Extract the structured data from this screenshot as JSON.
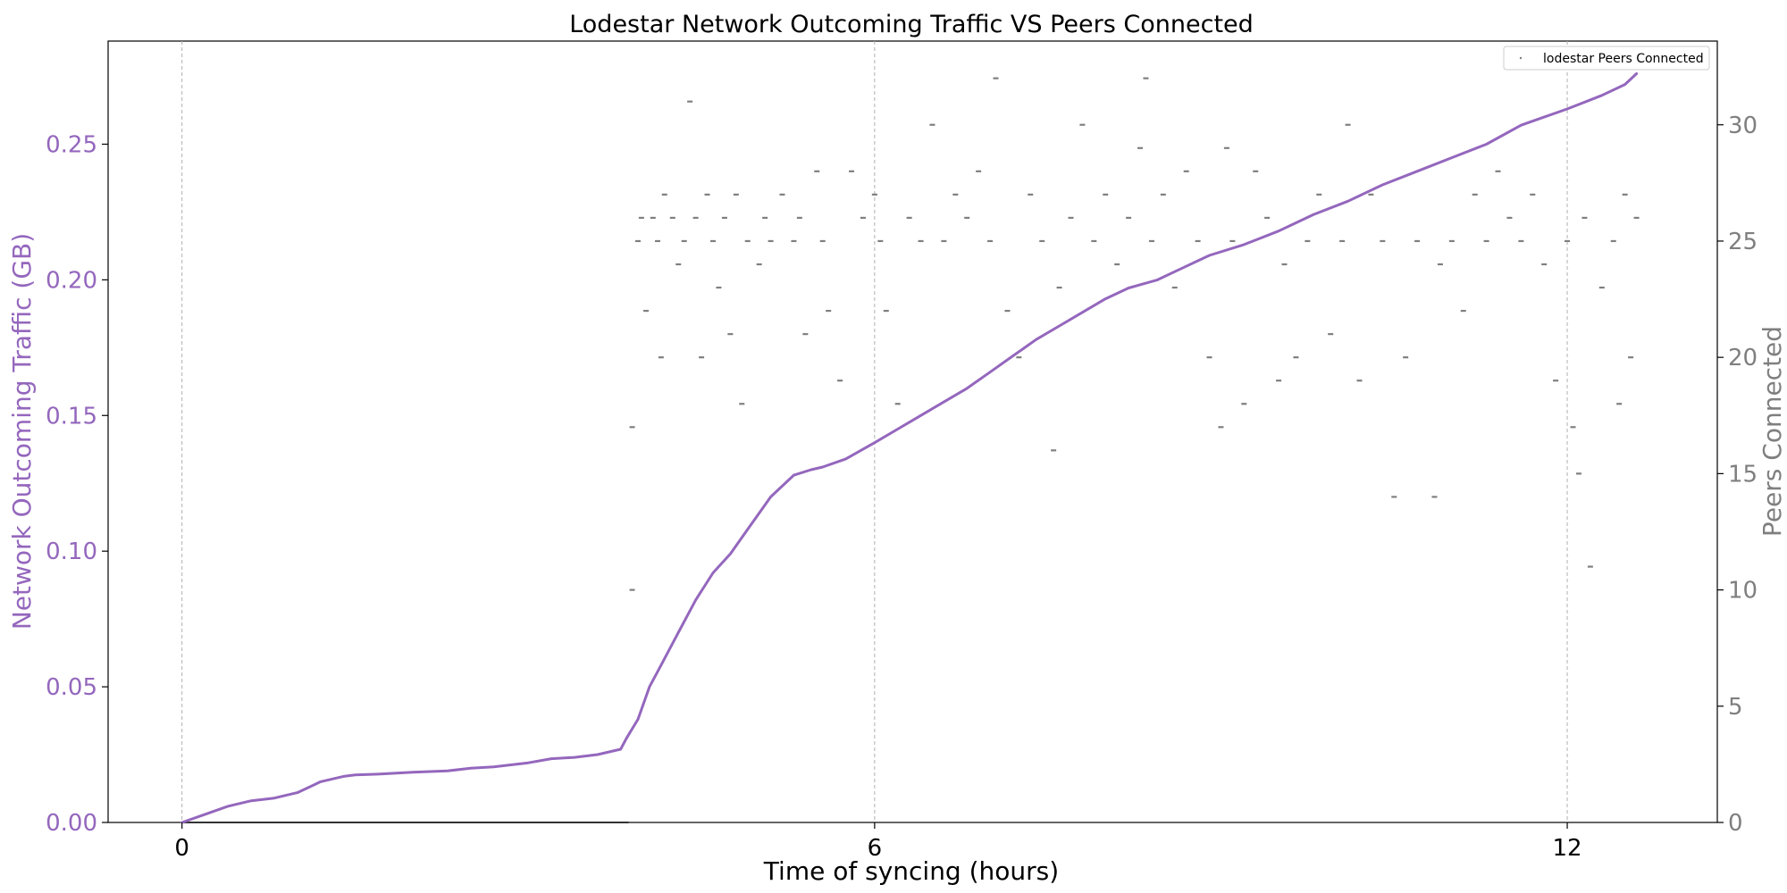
{
  "chart_data": {
    "type": "line",
    "title": "Lodestar Network Outcoming Traffic VS Peers Connected",
    "xlabel": "Time of syncing (hours)",
    "ylabel_left": "Network Outcoming Traffic (GB)",
    "ylabel_right": "Peers Connected",
    "xlim": [
      -0.64,
      13.3
    ],
    "ylim_left": [
      0,
      0.288
    ],
    "ylim_right": [
      0,
      33.6
    ],
    "x_ticks": [
      0,
      6,
      12
    ],
    "y_ticks_left": [
      "0.00",
      "0.05",
      "0.10",
      "0.15",
      "0.20",
      "0.25"
    ],
    "y_ticks_right": [
      "0",
      "5",
      "10",
      "15",
      "20",
      "25",
      "30"
    ],
    "vertical_grid": true,
    "legend_position": "top-right",
    "colors": {
      "traffic": "#9467bd",
      "peers": "#7f7f7f"
    },
    "series": [
      {
        "kind": "line",
        "axis": "left",
        "x": [
          0,
          0.2,
          0.4,
          0.6,
          0.8,
          1.0,
          1.15,
          1.2,
          1.4,
          1.5,
          1.7,
          2.0,
          2.3,
          2.5,
          2.7,
          2.8,
          3.0,
          3.2,
          3.4,
          3.6,
          3.7,
          3.8,
          3.85,
          3.95,
          4.05,
          4.15,
          4.3,
          4.45,
          4.6,
          4.75,
          4.9,
          5.1,
          5.3,
          5.45,
          5.55,
          5.75,
          6.0,
          6.2,
          6.4,
          6.6,
          6.8,
          7.0,
          7.2,
          7.4,
          7.6,
          7.8,
          8.0,
          8.2,
          8.45,
          8.6,
          8.65,
          8.9,
          9.2,
          9.5,
          9.8,
          10.1,
          10.4,
          10.7,
          11.0,
          11.3,
          11.6,
          11.8,
          12.0,
          12.3,
          12.5,
          12.6
        ],
        "y": [
          0,
          0.003,
          0.006,
          0.008,
          0.009,
          0.011,
          0.014,
          0.015,
          0.017,
          0.0175,
          0.0178,
          0.0185,
          0.019,
          0.02,
          0.0205,
          0.021,
          0.022,
          0.0235,
          0.024,
          0.025,
          0.026,
          0.027,
          0.031,
          0.038,
          0.05,
          0.058,
          0.07,
          0.082,
          0.092,
          0.099,
          0.108,
          0.12,
          0.128,
          0.13,
          0.131,
          0.134,
          0.14,
          0.145,
          0.15,
          0.155,
          0.16,
          0.166,
          0.172,
          0.178,
          0.183,
          0.188,
          0.193,
          0.197,
          0.2,
          0.203,
          0.204,
          0.209,
          0.213,
          0.218,
          0.224,
          0.229,
          0.235,
          0.24,
          0.245,
          0.25,
          0.257,
          0.26,
          0.263,
          0.268,
          0.272,
          0.276
        ]
      },
      {
        "kind": "scatter",
        "axis": "right",
        "name": "lodestar Peers Connected",
        "points": [
          [
            3.9,
            10
          ],
          [
            3.9,
            17
          ],
          [
            3.95,
            25
          ],
          [
            3.98,
            26
          ],
          [
            4.02,
            22
          ],
          [
            4.08,
            26
          ],
          [
            4.12,
            25
          ],
          [
            4.15,
            20
          ],
          [
            4.18,
            27
          ],
          [
            4.25,
            26
          ],
          [
            4.3,
            24
          ],
          [
            4.35,
            25
          ],
          [
            4.4,
            31
          ],
          [
            4.45,
            26
          ],
          [
            4.5,
            20
          ],
          [
            4.55,
            27
          ],
          [
            4.6,
            25
          ],
          [
            4.65,
            23
          ],
          [
            4.7,
            26
          ],
          [
            4.75,
            21
          ],
          [
            4.8,
            27
          ],
          [
            4.85,
            18
          ],
          [
            4.9,
            25
          ],
          [
            5.0,
            24
          ],
          [
            5.05,
            26
          ],
          [
            5.1,
            25
          ],
          [
            5.2,
            27
          ],
          [
            5.3,
            25
          ],
          [
            5.35,
            26
          ],
          [
            5.4,
            21
          ],
          [
            5.5,
            28
          ],
          [
            5.55,
            25
          ],
          [
            5.6,
            22
          ],
          [
            5.7,
            19
          ],
          [
            5.8,
            28
          ],
          [
            5.9,
            26
          ],
          [
            6.0,
            27
          ],
          [
            6.05,
            25
          ],
          [
            6.1,
            22
          ],
          [
            6.2,
            18
          ],
          [
            6.3,
            26
          ],
          [
            6.4,
            25
          ],
          [
            6.5,
            30
          ],
          [
            6.6,
            25
          ],
          [
            6.7,
            27
          ],
          [
            6.8,
            26
          ],
          [
            6.9,
            28
          ],
          [
            7.0,
            25
          ],
          [
            7.05,
            32
          ],
          [
            7.15,
            22
          ],
          [
            7.25,
            20
          ],
          [
            7.35,
            27
          ],
          [
            7.45,
            25
          ],
          [
            7.55,
            16
          ],
          [
            7.6,
            23
          ],
          [
            7.7,
            26
          ],
          [
            7.8,
            30
          ],
          [
            7.9,
            25
          ],
          [
            8.0,
            27
          ],
          [
            8.1,
            24
          ],
          [
            8.2,
            26
          ],
          [
            8.3,
            29
          ],
          [
            8.35,
            32
          ],
          [
            8.4,
            25
          ],
          [
            8.5,
            27
          ],
          [
            8.6,
            23
          ],
          [
            8.7,
            28
          ],
          [
            8.8,
            25
          ],
          [
            8.9,
            20
          ],
          [
            9.0,
            17
          ],
          [
            9.05,
            29
          ],
          [
            9.1,
            25
          ],
          [
            9.2,
            18
          ],
          [
            9.3,
            28
          ],
          [
            9.4,
            26
          ],
          [
            9.5,
            19
          ],
          [
            9.55,
            24
          ],
          [
            9.65,
            20
          ],
          [
            9.75,
            25
          ],
          [
            9.85,
            27
          ],
          [
            9.95,
            21
          ],
          [
            10.05,
            25
          ],
          [
            10.1,
            30
          ],
          [
            10.2,
            19
          ],
          [
            10.3,
            27
          ],
          [
            10.4,
            25
          ],
          [
            10.5,
            14
          ],
          [
            10.6,
            20
          ],
          [
            10.7,
            25
          ],
          [
            10.85,
            14
          ],
          [
            10.9,
            24
          ],
          [
            11.0,
            25
          ],
          [
            11.1,
            22
          ],
          [
            11.2,
            27
          ],
          [
            11.3,
            25
          ],
          [
            11.4,
            28
          ],
          [
            11.5,
            26
          ],
          [
            11.6,
            25
          ],
          [
            11.7,
            27
          ],
          [
            11.8,
            24
          ],
          [
            11.9,
            19
          ],
          [
            12.0,
            25
          ],
          [
            12.05,
            17
          ],
          [
            12.1,
            15
          ],
          [
            12.15,
            26
          ],
          [
            12.2,
            11
          ],
          [
            12.3,
            23
          ],
          [
            12.4,
            25
          ],
          [
            12.45,
            18
          ],
          [
            12.5,
            27
          ],
          [
            12.55,
            20
          ],
          [
            12.6,
            26
          ]
        ]
      }
    ]
  }
}
